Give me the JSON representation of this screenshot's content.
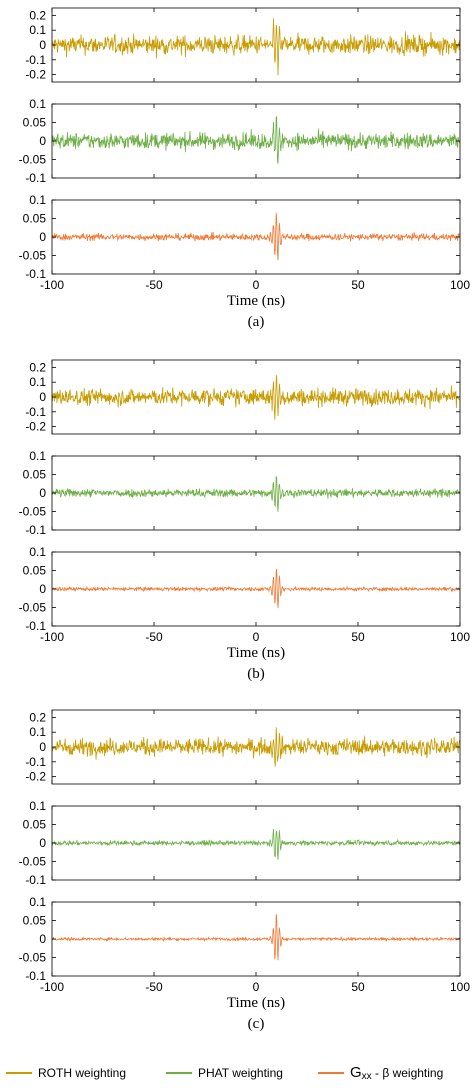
{
  "colors": {
    "roth": "#C89B00",
    "phat": "#6DAF46",
    "gxx": "#F07A35"
  },
  "legend": [
    {
      "series": "roth",
      "label": "ROTH weighting"
    },
    {
      "series": "phat",
      "label": "PHAT weighting"
    },
    {
      "series": "gxx",
      "label_main": "G",
      "label_sub": "xx",
      "label_rest": " - β weighting"
    }
  ],
  "chart_data": [
    {
      "type": "line",
      "caption": "(a)",
      "xlabel": "Time (ns)",
      "xlim": [
        -100,
        100
      ],
      "xticks": [
        "-100",
        "-50",
        "0",
        "50",
        "100"
      ],
      "panels": [
        {
          "series": "roth",
          "ylim": [
            -0.25,
            0.25
          ],
          "yticks": [
            "0.2",
            "0.1",
            "0",
            "-0.1",
            "-0.2"
          ],
          "noise_amplitude": 0.1,
          "peak_time_ns": 10,
          "peak_amplitude": 0.2
        },
        {
          "series": "phat",
          "ylim": [
            -0.1,
            0.1
          ],
          "yticks": [
            "0.1",
            "0.05",
            "0",
            "-0.05",
            "-0.1"
          ],
          "noise_amplitude": 0.035,
          "peak_time_ns": 10,
          "peak_amplitude": 0.07
        },
        {
          "series": "gxx",
          "ylim": [
            -0.1,
            0.1
          ],
          "yticks": [
            "0.1",
            "0.05",
            "0",
            "-0.05",
            "-0.1"
          ],
          "noise_amplitude": 0.015,
          "peak_time_ns": 10,
          "peak_amplitude": 0.08
        }
      ]
    },
    {
      "type": "line",
      "caption": "(b)",
      "xlabel": "Time (ns)",
      "xlim": [
        -100,
        100
      ],
      "xticks": [
        "-100",
        "-50",
        "0",
        "50",
        "100"
      ],
      "panels": [
        {
          "series": "roth",
          "ylim": [
            -0.25,
            0.25
          ],
          "yticks": [
            "0.2",
            "0.1",
            "0",
            "-0.1",
            "-0.2"
          ],
          "noise_amplitude": 0.09,
          "peak_time_ns": 10,
          "peak_amplitude": 0.18
        },
        {
          "series": "phat",
          "ylim": [
            -0.1,
            0.1
          ],
          "yticks": [
            "0.1",
            "0.05",
            "0",
            "-0.05",
            "-0.1"
          ],
          "noise_amplitude": 0.018,
          "peak_time_ns": 10,
          "peak_amplitude": 0.06
        },
        {
          "series": "gxx",
          "ylim": [
            -0.1,
            0.1
          ],
          "yticks": [
            "0.1",
            "0.05",
            "0",
            "-0.05",
            "-0.1"
          ],
          "noise_amplitude": 0.008,
          "peak_time_ns": 10,
          "peak_amplitude": 0.075
        }
      ]
    },
    {
      "type": "line",
      "caption": "(c)",
      "xlabel": "Time (ns)",
      "xlim": [
        -100,
        100
      ],
      "xticks": [
        "-100",
        "-50",
        "0",
        "50",
        "100"
      ],
      "panels": [
        {
          "series": "roth",
          "ylim": [
            -0.25,
            0.25
          ],
          "yticks": [
            "0.2",
            "0.1",
            "0",
            "-0.1",
            "-0.2"
          ],
          "noise_amplitude": 0.09,
          "peak_time_ns": 10,
          "peak_amplitude": 0.18
        },
        {
          "series": "phat",
          "ylim": [
            -0.1,
            0.1
          ],
          "yticks": [
            "0.1",
            "0.05",
            "0",
            "-0.05",
            "-0.1"
          ],
          "noise_amplitude": 0.01,
          "peak_time_ns": 10,
          "peak_amplitude": 0.06
        },
        {
          "series": "gxx",
          "ylim": [
            -0.1,
            0.1
          ],
          "yticks": [
            "0.1",
            "0.05",
            "0",
            "-0.05",
            "-0.1"
          ],
          "noise_amplitude": 0.006,
          "peak_time_ns": 10,
          "peak_amplitude": 0.075
        }
      ]
    }
  ]
}
